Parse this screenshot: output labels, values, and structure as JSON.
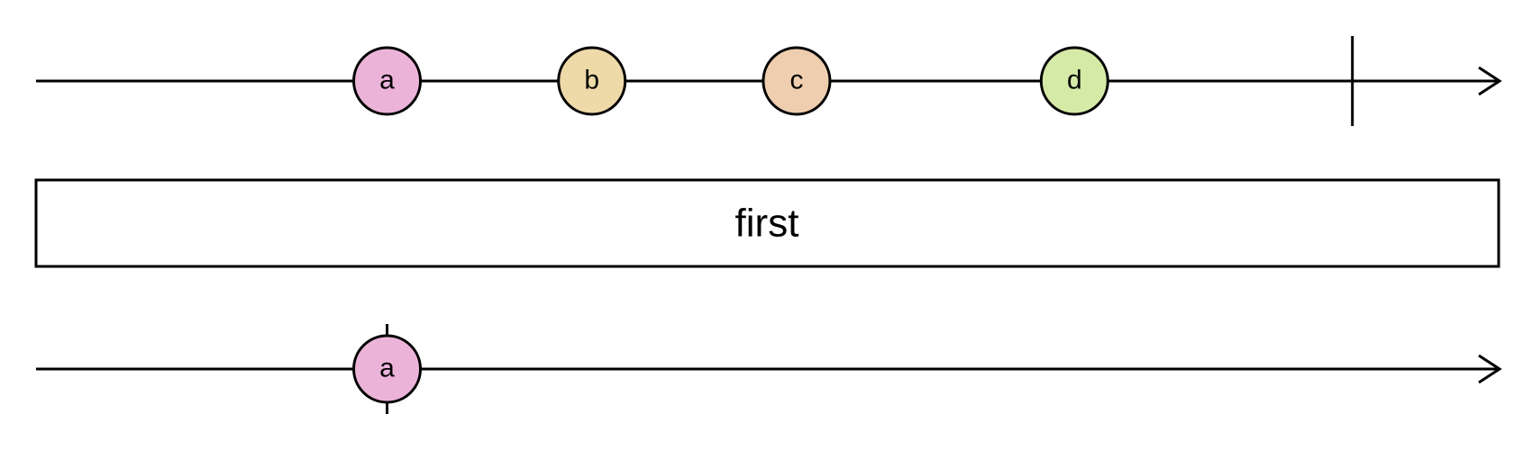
{
  "diagram": {
    "type": "marble-diagram",
    "operator": {
      "label": "first"
    },
    "input_stream": {
      "marbles": [
        {
          "label": "a",
          "color": "#ecb3d9",
          "time": 0.24
        },
        {
          "label": "b",
          "color": "#eed9a8",
          "time": 0.38
        },
        {
          "label": "c",
          "color": "#eeceaf",
          "time": 0.52
        },
        {
          "label": "d",
          "color": "#d6eaa8",
          "time": 0.71
        }
      ],
      "completion_time": 0.9
    },
    "output_stream": {
      "marbles": [
        {
          "label": "a",
          "color": "#ecb3d9",
          "time": 0.24,
          "completes": true
        }
      ]
    }
  }
}
